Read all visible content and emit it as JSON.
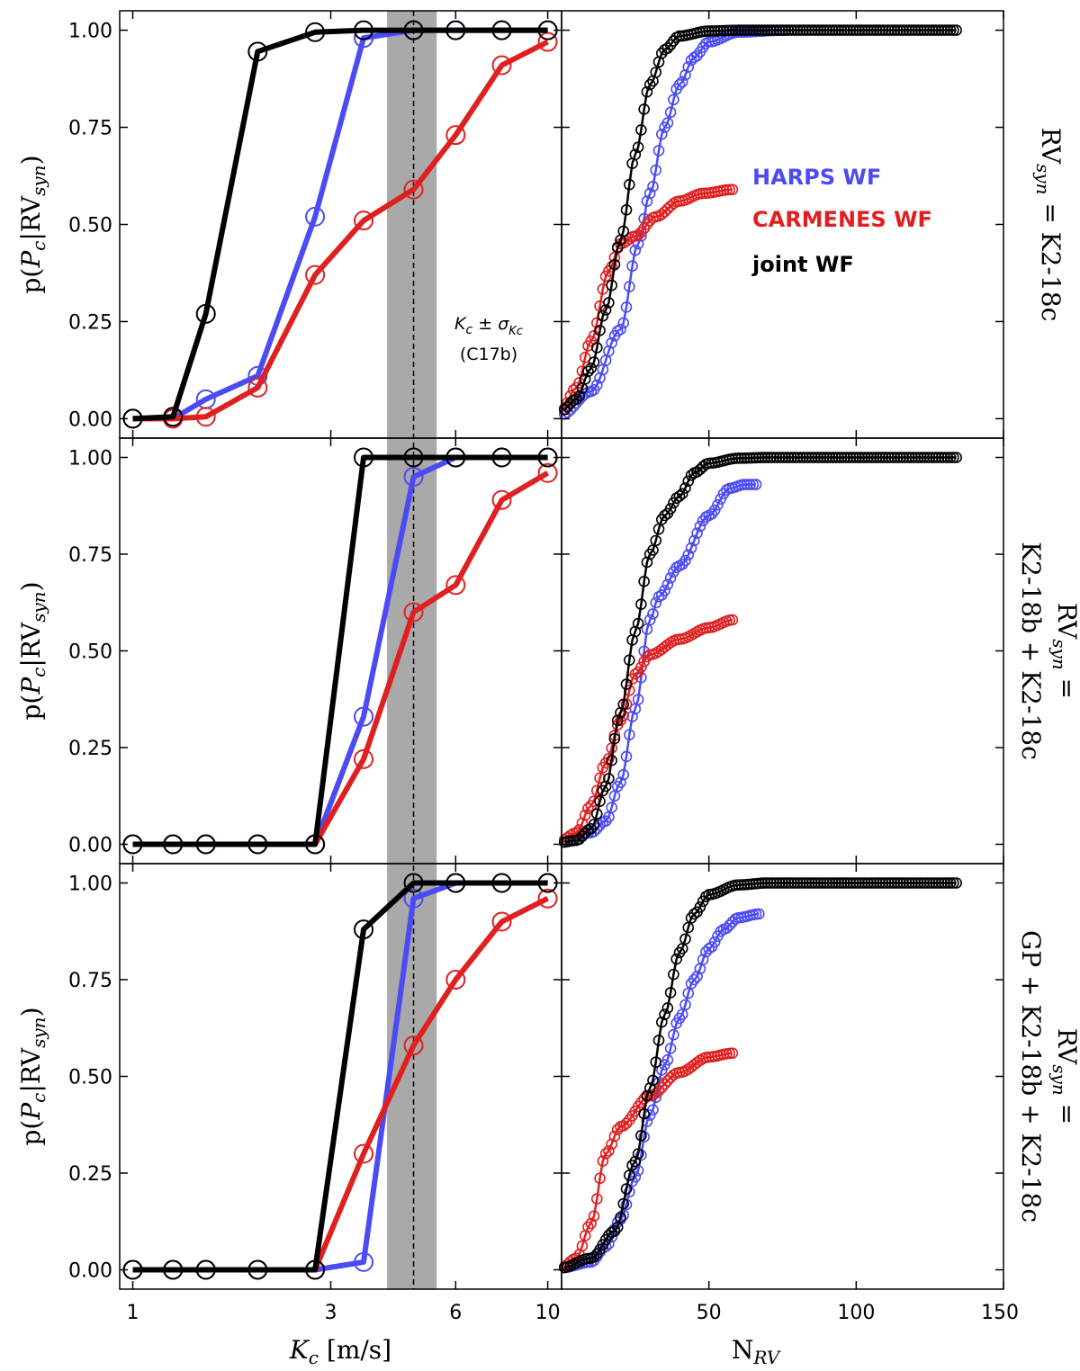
{
  "colors": {
    "harps": "#4b4bf5",
    "carmenes": "#e02020",
    "joint": "#000000",
    "band": "#a9a9a9"
  },
  "legend": [
    {
      "key": "harps",
      "label": "HARPS WF"
    },
    {
      "key": "carmenes",
      "label": "CARMENES WF"
    },
    {
      "key": "joint",
      "label": "joint WF"
    }
  ],
  "annotation": {
    "line1": "K_c ± σ_Kc",
    "line2": "(C17b)"
  },
  "left_axis": {
    "xlabel": "K_c [m/s]",
    "ylabel": "p(P_c|RV_syn)",
    "xticks": [
      1,
      3,
      6,
      10
    ],
    "xtick_labels": [
      "1",
      "3",
      "6",
      "10"
    ],
    "yticks": [
      0,
      0.25,
      0.5,
      0.75,
      1.0
    ],
    "ytick_labels": [
      "0.00",
      "0.25",
      "0.50",
      "0.75",
      "1.00"
    ],
    "xlim": [
      0.93,
      10.8
    ],
    "ylim": [
      -0.05,
      1.05
    ],
    "xscale": "log"
  },
  "right_axis": {
    "xlabel": "N_RV",
    "xticks": [
      50,
      100,
      150
    ],
    "xtick_labels": [
      "50",
      "100",
      "150"
    ],
    "xlim": [
      0,
      150
    ],
    "ylim": [
      -0.05,
      1.05
    ]
  },
  "band": {
    "center": 4.75,
    "low": 4.1,
    "high": 5.4
  },
  "row_labels": [
    [
      "RV_syn = K2-18c"
    ],
    [
      "RV_syn =",
      "K2-18b + K2-18c"
    ],
    [
      "RV_syn =",
      "GP + K2-18b + K2-18c"
    ]
  ],
  "chart_data": [
    {
      "type": "line",
      "panel": "top-left",
      "x": [
        1.0,
        1.25,
        1.5,
        2.0,
        2.75,
        3.6,
        4.75,
        6.0,
        7.75,
        10.0
      ],
      "series": [
        {
          "name": "HARPS WF",
          "key": "harps",
          "values": [
            0,
            0,
            0.05,
            0.11,
            0.52,
            0.98,
            1.0,
            1.0,
            1.0,
            1.0
          ]
        },
        {
          "name": "CARMENES WF",
          "key": "carmenes",
          "values": [
            0,
            0,
            0.005,
            0.08,
            0.37,
            0.51,
            0.59,
            0.73,
            0.91,
            0.97
          ]
        },
        {
          "name": "joint WF",
          "key": "joint",
          "values": [
            0,
            0.005,
            0.27,
            0.945,
            0.995,
            1.0,
            1.0,
            1.0,
            1.0,
            1.0
          ]
        }
      ]
    },
    {
      "type": "line",
      "panel": "middle-left",
      "x": [
        1.0,
        1.25,
        1.5,
        2.0,
        2.75,
        3.6,
        4.75,
        6.0,
        7.75,
        10.0
      ],
      "series": [
        {
          "name": "HARPS WF",
          "key": "harps",
          "values": [
            0,
            0,
            0,
            0,
            0,
            0.33,
            0.95,
            1.0,
            1.0,
            1.0
          ]
        },
        {
          "name": "CARMENES WF",
          "key": "carmenes",
          "values": [
            0,
            0,
            0,
            0,
            0,
            0.22,
            0.6,
            0.67,
            0.89,
            0.96
          ]
        },
        {
          "name": "joint WF",
          "key": "joint",
          "values": [
            0,
            0,
            0,
            0,
            0,
            1.0,
            1.0,
            1.0,
            1.0,
            1.0
          ]
        }
      ]
    },
    {
      "type": "line",
      "panel": "bottom-left",
      "x": [
        1.0,
        1.25,
        1.5,
        2.0,
        2.75,
        3.6,
        4.75,
        6.0,
        7.75,
        10.0
      ],
      "series": [
        {
          "name": "HARPS WF",
          "key": "harps",
          "values": [
            0,
            0,
            0,
            0,
            0,
            0.02,
            0.96,
            1.0,
            1.0,
            1.0
          ]
        },
        {
          "name": "CARMENES WF",
          "key": "carmenes",
          "values": [
            0,
            0,
            0,
            0,
            0,
            0.3,
            0.58,
            0.75,
            0.9,
            0.96
          ]
        },
        {
          "name": "joint WF",
          "key": "joint",
          "values": [
            0,
            0,
            0,
            0,
            0,
            0.88,
            1.0,
            1.0,
            1.0,
            1.0
          ]
        }
      ]
    },
    {
      "type": "scatter",
      "panel": "top-right",
      "style": "curve",
      "series": [
        {
          "name": "HARPS WF",
          "key": "harps",
          "n": 76,
          "knots": [
            [
              0,
              0.01
            ],
            [
              10,
              0.07
            ],
            [
              20,
              0.23
            ],
            [
              26,
              0.45
            ],
            [
              30,
              0.58
            ],
            [
              35,
              0.75
            ],
            [
              40,
              0.86
            ],
            [
              45,
              0.93
            ],
            [
              50,
              0.97
            ],
            [
              60,
              0.995
            ],
            [
              76,
              1.0
            ]
          ]
        },
        {
          "name": "CARMENES WF",
          "key": "carmenes",
          "n": 58,
          "knots": [
            [
              0,
              0.02
            ],
            [
              5,
              0.08
            ],
            [
              10,
              0.2
            ],
            [
              16,
              0.38
            ],
            [
              20,
              0.45
            ],
            [
              25,
              0.47
            ],
            [
              32,
              0.52
            ],
            [
              40,
              0.56
            ],
            [
              48,
              0.58
            ],
            [
              58,
              0.59
            ]
          ]
        },
        {
          "name": "joint WF",
          "key": "joint",
          "n": 134,
          "knots": [
            [
              0,
              0.02
            ],
            [
              5,
              0.05
            ],
            [
              10,
              0.13
            ],
            [
              15,
              0.28
            ],
            [
              20,
              0.46
            ],
            [
              25,
              0.68
            ],
            [
              30,
              0.86
            ],
            [
              35,
              0.95
            ],
            [
              40,
              0.985
            ],
            [
              50,
              0.998
            ],
            [
              60,
              1.0
            ],
            [
              134,
              1.0
            ]
          ]
        }
      ]
    },
    {
      "type": "scatter",
      "panel": "middle-right",
      "style": "curve",
      "series": [
        {
          "name": "HARPS WF",
          "key": "harps",
          "n": 66,
          "knots": [
            [
              0,
              0.005
            ],
            [
              10,
              0.03
            ],
            [
              15,
              0.06
            ],
            [
              20,
              0.16
            ],
            [
              25,
              0.35
            ],
            [
              30,
              0.58
            ],
            [
              33,
              0.64
            ],
            [
              40,
              0.72
            ],
            [
              50,
              0.85
            ],
            [
              57,
              0.92
            ],
            [
              62,
              0.93
            ],
            [
              66,
              0.93
            ]
          ]
        },
        {
          "name": "CARMENES WF",
          "key": "carmenes",
          "n": 58,
          "knots": [
            [
              0,
              0.01
            ],
            [
              5,
              0.03
            ],
            [
              10,
              0.1
            ],
            [
              15,
              0.21
            ],
            [
              20,
              0.32
            ],
            [
              25,
              0.44
            ],
            [
              30,
              0.49
            ],
            [
              40,
              0.53
            ],
            [
              50,
              0.56
            ],
            [
              58,
              0.58
            ]
          ]
        },
        {
          "name": "joint WF",
          "key": "joint",
          "n": 134,
          "knots": [
            [
              0,
              0.005
            ],
            [
              5,
              0.01
            ],
            [
              10,
              0.04
            ],
            [
              15,
              0.15
            ],
            [
              20,
              0.34
            ],
            [
              25,
              0.55
            ],
            [
              30,
              0.75
            ],
            [
              35,
              0.85
            ],
            [
              40,
              0.9
            ],
            [
              45,
              0.96
            ],
            [
              50,
              0.985
            ],
            [
              60,
              0.998
            ],
            [
              70,
              1.0
            ],
            [
              134,
              1.0
            ]
          ]
        }
      ]
    },
    {
      "type": "scatter",
      "panel": "bottom-right",
      "style": "curve",
      "series": [
        {
          "name": "HARPS WF",
          "key": "harps",
          "n": 67,
          "knots": [
            [
              0,
              0.005
            ],
            [
              10,
              0.02
            ],
            [
              15,
              0.06
            ],
            [
              20,
              0.13
            ],
            [
              25,
              0.24
            ],
            [
              30,
              0.4
            ],
            [
              35,
              0.53
            ],
            [
              40,
              0.65
            ],
            [
              45,
              0.75
            ],
            [
              50,
              0.83
            ],
            [
              55,
              0.88
            ],
            [
              60,
              0.91
            ],
            [
              67,
              0.92
            ]
          ]
        },
        {
          "name": "CARMENES WF",
          "key": "carmenes",
          "n": 58,
          "knots": [
            [
              0,
              0.005
            ],
            [
              5,
              0.03
            ],
            [
              10,
              0.12
            ],
            [
              15,
              0.3
            ],
            [
              20,
              0.37
            ],
            [
              30,
              0.45
            ],
            [
              40,
              0.51
            ],
            [
              50,
              0.55
            ],
            [
              58,
              0.56
            ]
          ]
        },
        {
          "name": "joint WF",
          "key": "joint",
          "n": 134,
          "knots": [
            [
              0,
              0.005
            ],
            [
              10,
              0.03
            ],
            [
              18,
              0.1
            ],
            [
              25,
              0.28
            ],
            [
              30,
              0.47
            ],
            [
              35,
              0.66
            ],
            [
              40,
              0.82
            ],
            [
              45,
              0.92
            ],
            [
              50,
              0.97
            ],
            [
              60,
              0.995
            ],
            [
              70,
              1.0
            ],
            [
              134,
              1.0
            ]
          ]
        }
      ]
    }
  ]
}
